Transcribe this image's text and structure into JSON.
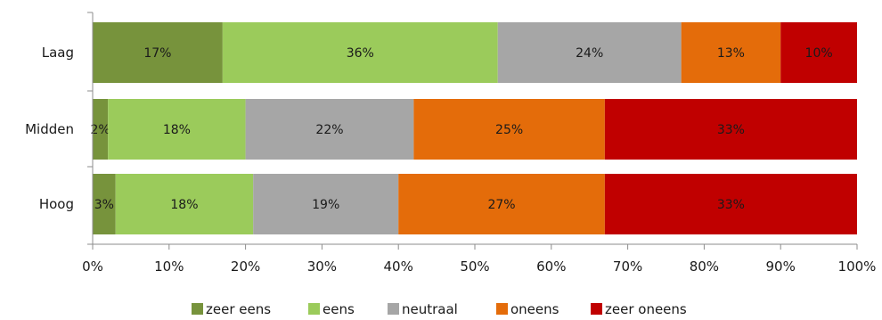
{
  "chart_data": {
    "type": "bar",
    "orientation": "horizontal",
    "stacked": true,
    "stack_mode": "percent",
    "title": "",
    "xlabel": "",
    "ylabel": "",
    "categories": [
      "Laag",
      "Midden",
      "Hoog"
    ],
    "xlim": [
      0,
      100
    ],
    "x_ticks": [
      "0%",
      "10%",
      "20%",
      "30%",
      "40%",
      "50%",
      "60%",
      "70%",
      "80%",
      "90%",
      "100%"
    ],
    "grid": false,
    "legend_position": "bottom",
    "series": [
      {
        "name": "zeer eens",
        "color": "#77933c",
        "values": [
          17,
          2,
          3
        ],
        "labels": [
          "17%",
          "2%",
          "3%"
        ]
      },
      {
        "name": "eens",
        "color": "#9bcb5b",
        "values": [
          36,
          18,
          18
        ],
        "labels": [
          "36%",
          "18%",
          "18%"
        ]
      },
      {
        "name": "neutraal",
        "color": "#a6a6a6",
        "values": [
          24,
          22,
          19
        ],
        "labels": [
          "24%",
          "22%",
          "19%"
        ]
      },
      {
        "name": "oneens",
        "color": "#e46c0a",
        "values": [
          13,
          25,
          27
        ],
        "labels": [
          "13%",
          "25%",
          "27%"
        ]
      },
      {
        "name": "zeer oneens",
        "color": "#c00000",
        "values": [
          10,
          33,
          33
        ],
        "labels": [
          "10%",
          "33%",
          "33%"
        ]
      }
    ]
  }
}
